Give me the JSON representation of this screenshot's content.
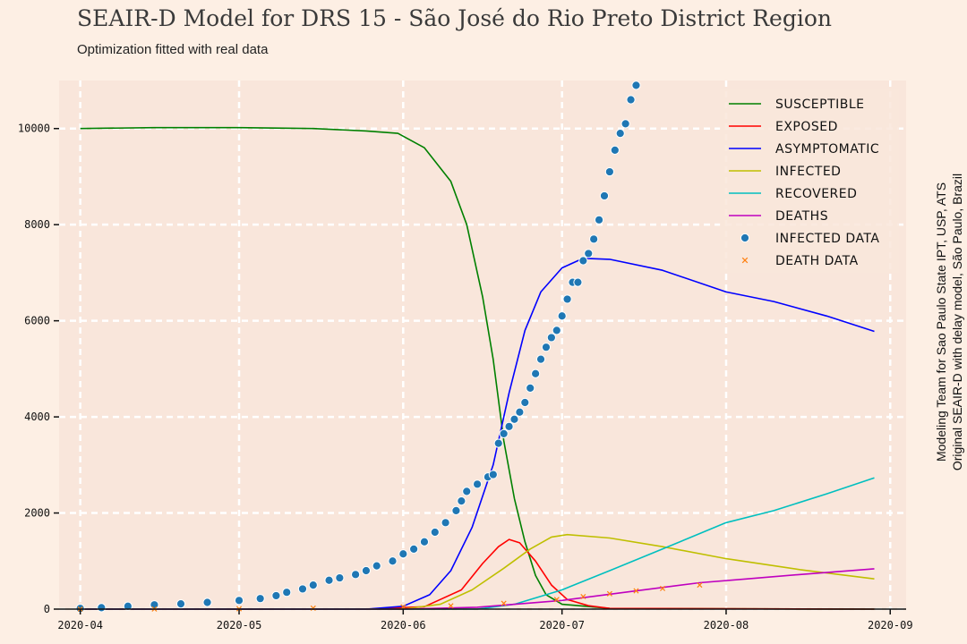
{
  "header": {
    "title": "SEAIR-D Model for DRS 15 - São José do Rio Preto District Region",
    "subtitle": "Optimization fitted with real data"
  },
  "side_note": {
    "line1": "Modeling Team for Sao Paulo State IPT, USP, ATS",
    "line2": "Original SEAIR-D with delay model, São Paulo, Brazil"
  },
  "colors": {
    "background": "#fdefe4",
    "plot_background": "#f9e6db",
    "grid": "#ffffff",
    "susceptible": "#008000",
    "exposed": "#ff0000",
    "asymptomatic": "#0000ff",
    "infected": "#bfbf00",
    "recovered": "#00bfbf",
    "deaths": "#bf00bf",
    "infected_data": "#1f77b4",
    "death_data": "#ff7f0e"
  },
  "chart_data": {
    "type": "line",
    "title": "SEAIR-D Model for DRS 15 - São José do Rio Preto District Region",
    "subtitle": "Optimization fitted with real data",
    "xlabel": "",
    "ylabel": "",
    "x_ticks": [
      "2020-04",
      "2020-05",
      "2020-06",
      "2020-07",
      "2020-08",
      "2020-09"
    ],
    "y_ticks": [
      "0",
      "2000",
      "4000",
      "6000",
      "8000",
      "10000"
    ],
    "xlim": [
      "2020-03-28",
      "2020-09-04"
    ],
    "ylim": [
      0,
      11000
    ],
    "grid": true,
    "legend_position": "top-right",
    "series": [
      {
        "name": "SUSCEPTIBLE",
        "kind": "line",
        "color": "#008000",
        "points": [
          [
            "2020-04-01",
            10000
          ],
          [
            "2020-04-15",
            10020
          ],
          [
            "2020-05-01",
            10020
          ],
          [
            "2020-05-15",
            10000
          ],
          [
            "2020-05-25",
            9950
          ],
          [
            "2020-05-31",
            9900
          ],
          [
            "2020-06-05",
            9600
          ],
          [
            "2020-06-10",
            8900
          ],
          [
            "2020-06-13",
            8000
          ],
          [
            "2020-06-16",
            6500
          ],
          [
            "2020-06-18",
            5200
          ],
          [
            "2020-06-20",
            3500
          ],
          [
            "2020-06-22",
            2300
          ],
          [
            "2020-06-24",
            1400
          ],
          [
            "2020-06-26",
            700
          ],
          [
            "2020-06-28",
            300
          ],
          [
            "2020-07-01",
            100
          ],
          [
            "2020-07-10",
            15
          ],
          [
            "2020-08-29",
            0
          ]
        ]
      },
      {
        "name": "EXPOSED",
        "kind": "line",
        "color": "#ff0000",
        "points": [
          [
            "2020-04-01",
            0
          ],
          [
            "2020-05-25",
            0
          ],
          [
            "2020-06-05",
            50
          ],
          [
            "2020-06-12",
            400
          ],
          [
            "2020-06-16",
            950
          ],
          [
            "2020-06-19",
            1300
          ],
          [
            "2020-06-21",
            1450
          ],
          [
            "2020-06-23",
            1380
          ],
          [
            "2020-06-26",
            1000
          ],
          [
            "2020-06-29",
            500
          ],
          [
            "2020-07-02",
            200
          ],
          [
            "2020-07-06",
            70
          ],
          [
            "2020-07-10",
            15
          ],
          [
            "2020-08-29",
            0
          ]
        ]
      },
      {
        "name": "ASYMPTOMATIC",
        "kind": "line",
        "color": "#0000ff",
        "points": [
          [
            "2020-04-01",
            0
          ],
          [
            "2020-05-25",
            0
          ],
          [
            "2020-06-01",
            60
          ],
          [
            "2020-06-06",
            300
          ],
          [
            "2020-06-10",
            800
          ],
          [
            "2020-06-14",
            1700
          ],
          [
            "2020-06-18",
            3000
          ],
          [
            "2020-06-21",
            4500
          ],
          [
            "2020-06-24",
            5800
          ],
          [
            "2020-06-27",
            6600
          ],
          [
            "2020-07-01",
            7100
          ],
          [
            "2020-07-05",
            7300
          ],
          [
            "2020-07-10",
            7280
          ],
          [
            "2020-07-20",
            7050
          ],
          [
            "2020-08-01",
            6600
          ],
          [
            "2020-08-10",
            6400
          ],
          [
            "2020-08-20",
            6100
          ],
          [
            "2020-08-29",
            5780
          ]
        ]
      },
      {
        "name": "INFECTED",
        "kind": "line",
        "color": "#bfbf00",
        "points": [
          [
            "2020-04-01",
            0
          ],
          [
            "2020-06-01",
            0
          ],
          [
            "2020-06-08",
            100
          ],
          [
            "2020-06-14",
            400
          ],
          [
            "2020-06-20",
            850
          ],
          [
            "2020-06-25",
            1250
          ],
          [
            "2020-06-29",
            1500
          ],
          [
            "2020-07-02",
            1550
          ],
          [
            "2020-07-10",
            1480
          ],
          [
            "2020-07-20",
            1300
          ],
          [
            "2020-08-01",
            1050
          ],
          [
            "2020-08-15",
            820
          ],
          [
            "2020-08-29",
            630
          ]
        ]
      },
      {
        "name": "RECOVERED",
        "kind": "line",
        "color": "#00bfbf",
        "points": [
          [
            "2020-04-01",
            0
          ],
          [
            "2020-06-15",
            0
          ],
          [
            "2020-06-22",
            100
          ],
          [
            "2020-07-01",
            400
          ],
          [
            "2020-07-10",
            800
          ],
          [
            "2020-07-20",
            1250
          ],
          [
            "2020-08-01",
            1800
          ],
          [
            "2020-08-10",
            2050
          ],
          [
            "2020-08-20",
            2400
          ],
          [
            "2020-08-29",
            2730
          ]
        ]
      },
      {
        "name": "DEATHS",
        "kind": "line",
        "color": "#bf00bf",
        "points": [
          [
            "2020-04-01",
            0
          ],
          [
            "2020-06-01",
            0
          ],
          [
            "2020-06-15",
            40
          ],
          [
            "2020-07-01",
            180
          ],
          [
            "2020-07-15",
            380
          ],
          [
            "2020-07-27",
            550
          ],
          [
            "2020-08-05",
            630
          ],
          [
            "2020-08-15",
            720
          ],
          [
            "2020-08-29",
            840
          ]
        ]
      },
      {
        "name": "INFECTED DATA",
        "kind": "scatter",
        "marker": "circle",
        "color": "#1f77b4",
        "points": [
          [
            "2020-04-01",
            15
          ],
          [
            "2020-04-05",
            30
          ],
          [
            "2020-04-10",
            60
          ],
          [
            "2020-04-15",
            90
          ],
          [
            "2020-04-20",
            110
          ],
          [
            "2020-04-25",
            140
          ],
          [
            "2020-05-01",
            180
          ],
          [
            "2020-05-05",
            220
          ],
          [
            "2020-05-08",
            280
          ],
          [
            "2020-05-10",
            350
          ],
          [
            "2020-05-13",
            420
          ],
          [
            "2020-05-15",
            500
          ],
          [
            "2020-05-18",
            600
          ],
          [
            "2020-05-20",
            650
          ],
          [
            "2020-05-23",
            720
          ],
          [
            "2020-05-25",
            800
          ],
          [
            "2020-05-27",
            900
          ],
          [
            "2020-05-30",
            1000
          ],
          [
            "2020-06-01",
            1150
          ],
          [
            "2020-06-03",
            1250
          ],
          [
            "2020-06-05",
            1400
          ],
          [
            "2020-06-07",
            1600
          ],
          [
            "2020-06-09",
            1800
          ],
          [
            "2020-06-11",
            2050
          ],
          [
            "2020-06-12",
            2250
          ],
          [
            "2020-06-13",
            2450
          ],
          [
            "2020-06-15",
            2600
          ],
          [
            "2020-06-17",
            2750
          ],
          [
            "2020-06-18",
            2800
          ],
          [
            "2020-06-19",
            3450
          ],
          [
            "2020-06-20",
            3650
          ],
          [
            "2020-06-21",
            3800
          ],
          [
            "2020-06-22",
            3950
          ],
          [
            "2020-06-23",
            4100
          ],
          [
            "2020-06-24",
            4300
          ],
          [
            "2020-06-25",
            4600
          ],
          [
            "2020-06-26",
            4900
          ],
          [
            "2020-06-27",
            5200
          ],
          [
            "2020-06-28",
            5450
          ],
          [
            "2020-06-29",
            5650
          ],
          [
            "2020-06-30",
            5800
          ],
          [
            "2020-07-01",
            6100
          ],
          [
            "2020-07-02",
            6450
          ],
          [
            "2020-07-03",
            6800
          ],
          [
            "2020-07-04",
            6800
          ],
          [
            "2020-07-05",
            7250
          ],
          [
            "2020-07-06",
            7400
          ],
          [
            "2020-07-07",
            7700
          ],
          [
            "2020-07-08",
            8100
          ],
          [
            "2020-07-09",
            8600
          ],
          [
            "2020-07-10",
            9100
          ],
          [
            "2020-07-11",
            9550
          ],
          [
            "2020-07-12",
            9900
          ],
          [
            "2020-07-13",
            10100
          ],
          [
            "2020-07-14",
            10600
          ],
          [
            "2020-07-15",
            10900
          ]
        ]
      },
      {
        "name": "DEATH DATA",
        "kind": "scatter",
        "marker": "x",
        "color": "#ff7f0e",
        "points": [
          [
            "2020-04-01",
            0
          ],
          [
            "2020-04-15",
            2
          ],
          [
            "2020-05-01",
            8
          ],
          [
            "2020-05-15",
            20
          ],
          [
            "2020-06-01",
            45
          ],
          [
            "2020-06-10",
            70
          ],
          [
            "2020-06-20",
            120
          ],
          [
            "2020-06-30",
            200
          ],
          [
            "2020-07-05",
            260
          ],
          [
            "2020-07-10",
            320
          ],
          [
            "2020-07-15",
            380
          ],
          [
            "2020-07-20",
            430
          ],
          [
            "2020-07-27",
            500
          ]
        ]
      }
    ]
  }
}
